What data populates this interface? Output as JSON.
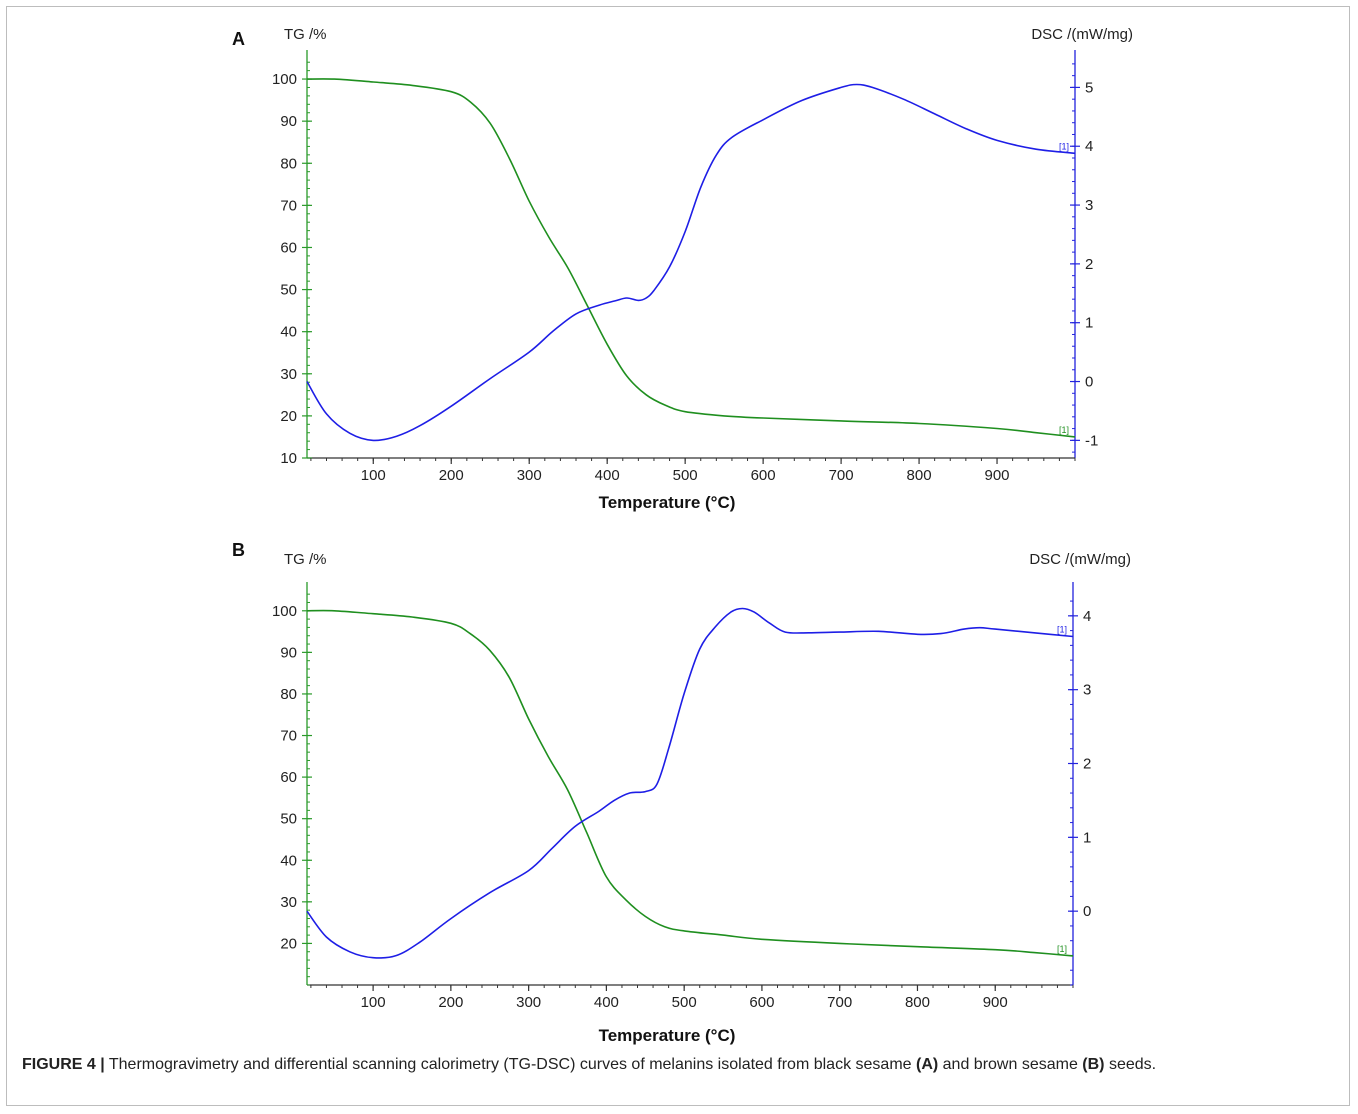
{
  "chart_data": [
    {
      "type": "line",
      "panel_label": "A",
      "xlabel": "Temperature (°C)",
      "y_left_label": "TG /%",
      "y_right_label": "DSC /(mW/mg)",
      "xlim": [
        15,
        1000
      ],
      "x_ticks": [
        100,
        200,
        300,
        400,
        500,
        600,
        700,
        800,
        900
      ],
      "y_left_lim": [
        10,
        105
      ],
      "y_left_ticks": [
        10,
        20,
        30,
        40,
        50,
        60,
        70,
        80,
        90,
        100
      ],
      "y_right_lim": [
        -1.3,
        5.5
      ],
      "y_right_ticks": [
        -1,
        0,
        1,
        2,
        3,
        4,
        5
      ],
      "series": [
        {
          "name": "TG",
          "axis": "left",
          "color": "#1f8f1f",
          "end_marker": "[1]",
          "x": [
            15,
            50,
            100,
            150,
            200,
            225,
            250,
            275,
            300,
            325,
            350,
            375,
            400,
            425,
            450,
            475,
            500,
            550,
            600,
            700,
            800,
            900,
            950,
            1000
          ],
          "y": [
            100,
            100,
            99.3,
            98.5,
            97,
            94.5,
            89.5,
            81,
            71,
            62.5,
            55,
            46,
            37,
            29.5,
            25,
            22.5,
            21,
            20,
            19.5,
            18.8,
            18.2,
            17,
            16,
            15
          ]
        },
        {
          "name": "DSC",
          "axis": "right",
          "color": "#1e1ee6",
          "end_marker": "[1]",
          "x": [
            15,
            40,
            70,
            100,
            130,
            160,
            200,
            250,
            300,
            330,
            360,
            390,
            410,
            425,
            440,
            450,
            460,
            480,
            500,
            520,
            540,
            560,
            600,
            650,
            700,
            720,
            740,
            780,
            820,
            860,
            900,
            950,
            1000
          ],
          "y": [
            0,
            -0.55,
            -0.88,
            -1.0,
            -0.93,
            -0.75,
            -0.42,
            0.05,
            0.5,
            0.85,
            1.15,
            1.3,
            1.37,
            1.42,
            1.38,
            1.42,
            1.55,
            1.95,
            2.55,
            3.3,
            3.85,
            4.15,
            4.45,
            4.78,
            5.0,
            5.05,
            5.0,
            4.8,
            4.55,
            4.3,
            4.1,
            3.95,
            3.88
          ]
        }
      ]
    },
    {
      "type": "line",
      "panel_label": "B",
      "xlabel": "Temperature (°C)",
      "y_left_label": "TG /%",
      "y_right_label": "DSC /(mW/mg)",
      "xlim": [
        15,
        1000
      ],
      "x_ticks": [
        100,
        200,
        300,
        400,
        500,
        600,
        700,
        800,
        900
      ],
      "y_left_lim": [
        10,
        105
      ],
      "y_left_ticks": [
        20,
        30,
        40,
        50,
        60,
        70,
        80,
        90,
        100
      ],
      "y_right_lim": [
        -1.0,
        4.35
      ],
      "y_right_ticks": [
        0,
        1,
        2,
        3,
        4
      ],
      "series": [
        {
          "name": "TG",
          "axis": "left",
          "color": "#1f8f1f",
          "end_marker": "[1]",
          "x": [
            15,
            50,
            100,
            150,
            200,
            225,
            250,
            275,
            300,
            325,
            350,
            375,
            400,
            425,
            450,
            475,
            500,
            550,
            600,
            700,
            800,
            900,
            950,
            1000
          ],
          "y": [
            100,
            100,
            99.3,
            98.5,
            97,
            94.5,
            90.5,
            84,
            74,
            65,
            57,
            46.5,
            36,
            30.5,
            26.5,
            24,
            23,
            22,
            21,
            20,
            19.2,
            18.5,
            17.8,
            17
          ]
        },
        {
          "name": "DSC",
          "axis": "right",
          "color": "#1e1ee6",
          "end_marker": "[1]",
          "x": [
            15,
            40,
            70,
            100,
            130,
            160,
            200,
            250,
            300,
            330,
            360,
            390,
            410,
            430,
            450,
            465,
            480,
            500,
            520,
            540,
            560,
            575,
            590,
            610,
            630,
            660,
            700,
            750,
            800,
            830,
            860,
            880,
            900,
            950,
            1000
          ],
          "y": [
            0,
            -0.35,
            -0.55,
            -0.63,
            -0.6,
            -0.42,
            -0.1,
            0.25,
            0.55,
            0.85,
            1.15,
            1.35,
            1.5,
            1.6,
            1.62,
            1.72,
            2.2,
            2.95,
            3.55,
            3.85,
            4.05,
            4.1,
            4.05,
            3.9,
            3.78,
            3.77,
            3.78,
            3.79,
            3.75,
            3.76,
            3.82,
            3.84,
            3.82,
            3.77,
            3.72
          ]
        }
      ]
    }
  ],
  "caption": {
    "label": "FIGURE 4 |",
    "text_1": " Thermogravimetry and differential scanning calorimetry (TG-DSC) curves of melanins isolated from black sesame ",
    "ref_a": "(A)",
    "text_2": " and brown sesame ",
    "ref_b": "(B)",
    "text_3": " seeds."
  }
}
